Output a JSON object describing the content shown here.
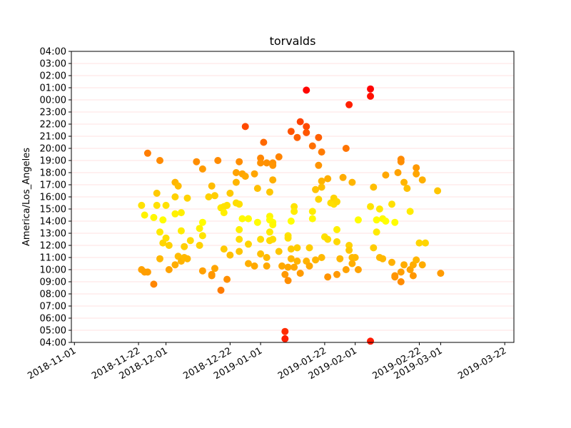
{
  "chart_data": {
    "type": "scatter",
    "title": "torvalds",
    "xlabel": "",
    "ylabel": "America/Los_Angeles",
    "x_axis_type": "date",
    "xlim": [
      "2018-10-31",
      "2019-03-25"
    ],
    "ylim": [
      4,
      28
    ],
    "grid": "horizontal",
    "x_ticks": [
      "2018-11-01",
      "2018-11-22",
      "2018-12-01",
      "2018-12-22",
      "2019-01-01",
      "2019-01-22",
      "2019-02-01",
      "2019-02-22",
      "2019-03-01",
      "2019-03-22"
    ],
    "y_ticks": [
      {
        "value": 4,
        "label": "04:00"
      },
      {
        "value": 5,
        "label": "05:00"
      },
      {
        "value": 6,
        "label": "06:00"
      },
      {
        "value": 7,
        "label": "07:00"
      },
      {
        "value": 8,
        "label": "08:00"
      },
      {
        "value": 9,
        "label": "09:00"
      },
      {
        "value": 10,
        "label": "10:00"
      },
      {
        "value": 11,
        "label": "11:00"
      },
      {
        "value": 12,
        "label": "12:00"
      },
      {
        "value": 13,
        "label": "13:00"
      },
      {
        "value": 14,
        "label": "14:00"
      },
      {
        "value": 15,
        "label": "15:00"
      },
      {
        "value": 16,
        "label": "16:00"
      },
      {
        "value": 17,
        "label": "17:00"
      },
      {
        "value": 18,
        "label": "18:00"
      },
      {
        "value": 19,
        "label": "19:00"
      },
      {
        "value": 20,
        "label": "20:00"
      },
      {
        "value": 21,
        "label": "21:00"
      },
      {
        "value": 22,
        "label": "22:00"
      },
      {
        "value": 23,
        "label": "23:00"
      },
      {
        "value": 24,
        "label": "00:00"
      },
      {
        "value": 25,
        "label": "01:00"
      },
      {
        "value": 26,
        "label": "02:00"
      },
      {
        "value": 27,
        "label": "03:00"
      },
      {
        "value": 28,
        "label": "04:00"
      }
    ],
    "color_scale": {
      "low": "#ffff00",
      "high": "#ff0000"
    },
    "points": [
      {
        "x": "2018-11-23",
        "y": 15.3
      },
      {
        "x": "2018-11-23",
        "y": 10.0
      },
      {
        "x": "2018-11-24",
        "y": 14.5
      },
      {
        "x": "2018-11-24",
        "y": 9.8
      },
      {
        "x": "2018-11-25",
        "y": 19.6
      },
      {
        "x": "2018-11-25",
        "y": 9.8
      },
      {
        "x": "2018-11-27",
        "y": 14.3
      },
      {
        "x": "2018-11-27",
        "y": 8.8
      },
      {
        "x": "2018-11-28",
        "y": 16.3
      },
      {
        "x": "2018-11-28",
        "y": 15.3
      },
      {
        "x": "2018-11-29",
        "y": 19.0
      },
      {
        "x": "2018-11-29",
        "y": 13.1
      },
      {
        "x": "2018-11-29",
        "y": 10.9
      },
      {
        "x": "2018-11-30",
        "y": 14.1
      },
      {
        "x": "2018-11-30",
        "y": 12.2
      },
      {
        "x": "2018-12-01",
        "y": 15.3
      },
      {
        "x": "2018-12-01",
        "y": 12.6
      },
      {
        "x": "2018-12-02",
        "y": 12.0
      },
      {
        "x": "2018-12-02",
        "y": 10.0
      },
      {
        "x": "2018-12-04",
        "y": 17.2
      },
      {
        "x": "2018-12-04",
        "y": 16.0
      },
      {
        "x": "2018-12-04",
        "y": 14.6
      },
      {
        "x": "2018-12-04",
        "y": 10.4
      },
      {
        "x": "2018-12-05",
        "y": 16.9
      },
      {
        "x": "2018-12-05",
        "y": 11.1
      },
      {
        "x": "2018-12-06",
        "y": 14.7
      },
      {
        "x": "2018-12-06",
        "y": 13.2
      },
      {
        "x": "2018-12-06",
        "y": 10.7
      },
      {
        "x": "2018-12-07",
        "y": 11.9
      },
      {
        "x": "2018-12-07",
        "y": 11.0
      },
      {
        "x": "2018-12-08",
        "y": 15.9
      },
      {
        "x": "2018-12-08",
        "y": 10.9
      },
      {
        "x": "2018-12-09",
        "y": 12.4
      },
      {
        "x": "2018-12-11",
        "y": 18.9
      },
      {
        "x": "2018-12-12",
        "y": 13.4
      },
      {
        "x": "2018-12-12",
        "y": 12.0
      },
      {
        "x": "2018-12-13",
        "y": 18.3
      },
      {
        "x": "2018-12-13",
        "y": 13.9
      },
      {
        "x": "2018-12-13",
        "y": 12.8
      },
      {
        "x": "2018-12-13",
        "y": 9.9
      },
      {
        "x": "2018-12-15",
        "y": 16.0
      },
      {
        "x": "2018-12-16",
        "y": 16.9
      },
      {
        "x": "2018-12-16",
        "y": 9.6
      },
      {
        "x": "2018-12-16",
        "y": 9.5
      },
      {
        "x": "2018-12-17",
        "y": 16.1
      },
      {
        "x": "2018-12-17",
        "y": 10.1
      },
      {
        "x": "2018-12-18",
        "y": 19.0
      },
      {
        "x": "2018-12-19",
        "y": 15.1
      },
      {
        "x": "2018-12-19",
        "y": 8.3
      },
      {
        "x": "2018-12-20",
        "y": 15.2
      },
      {
        "x": "2018-12-20",
        "y": 14.7
      },
      {
        "x": "2018-12-20",
        "y": 11.7
      },
      {
        "x": "2018-12-21",
        "y": 15.3
      },
      {
        "x": "2018-12-21",
        "y": 9.2
      },
      {
        "x": "2018-12-22",
        "y": 16.3
      },
      {
        "x": "2018-12-22",
        "y": 11.2
      },
      {
        "x": "2018-12-24",
        "y": 18.0
      },
      {
        "x": "2018-12-24",
        "y": 17.2
      },
      {
        "x": "2018-12-24",
        "y": 15.5
      },
      {
        "x": "2018-12-25",
        "y": 18.9
      },
      {
        "x": "2018-12-25",
        "y": 15.4
      },
      {
        "x": "2018-12-25",
        "y": 13.3
      },
      {
        "x": "2018-12-25",
        "y": 12.5
      },
      {
        "x": "2018-12-25",
        "y": 11.5
      },
      {
        "x": "2018-12-26",
        "y": 17.9
      },
      {
        "x": "2018-12-26",
        "y": 14.2
      },
      {
        "x": "2018-12-27",
        "y": 21.8
      },
      {
        "x": "2018-12-27",
        "y": 17.7
      },
      {
        "x": "2018-12-28",
        "y": 14.2
      },
      {
        "x": "2018-12-28",
        "y": 12.1
      },
      {
        "x": "2018-12-28",
        "y": 10.5
      },
      {
        "x": "2018-12-30",
        "y": 17.9
      },
      {
        "x": "2018-12-30",
        "y": 10.3
      },
      {
        "x": "2018-12-31",
        "y": 16.7
      },
      {
        "x": "2018-12-31",
        "y": 13.9
      },
      {
        "x": "2019-01-01",
        "y": 19.2
      },
      {
        "x": "2019-01-01",
        "y": 18.8
      },
      {
        "x": "2019-01-01",
        "y": 12.5
      },
      {
        "x": "2019-01-01",
        "y": 11.3
      },
      {
        "x": "2019-01-02",
        "y": 20.5
      },
      {
        "x": "2019-01-03",
        "y": 18.8
      },
      {
        "x": "2019-01-03",
        "y": 11.0
      },
      {
        "x": "2019-01-03",
        "y": 10.3
      },
      {
        "x": "2019-01-04",
        "y": 16.4
      },
      {
        "x": "2019-01-04",
        "y": 14.4
      },
      {
        "x": "2019-01-04",
        "y": 14.1
      },
      {
        "x": "2019-01-04",
        "y": 13.1
      },
      {
        "x": "2019-01-04",
        "y": 12.4
      },
      {
        "x": "2019-01-05",
        "y": 18.8
      },
      {
        "x": "2019-01-05",
        "y": 18.6
      },
      {
        "x": "2019-01-05",
        "y": 17.4
      },
      {
        "x": "2019-01-05",
        "y": 13.9
      },
      {
        "x": "2019-01-05",
        "y": 13.7
      },
      {
        "x": "2019-01-05",
        "y": 12.5
      },
      {
        "x": "2019-01-07",
        "y": 19.3
      },
      {
        "x": "2019-01-07",
        "y": 11.5
      },
      {
        "x": "2019-01-08",
        "y": 10.3
      },
      {
        "x": "2019-01-09",
        "y": 4.9
      },
      {
        "x": "2019-01-09",
        "y": 4.3
      },
      {
        "x": "2019-01-09",
        "y": 9.6
      },
      {
        "x": "2019-01-10",
        "y": 12.8
      },
      {
        "x": "2019-01-10",
        "y": 12.6
      },
      {
        "x": "2019-01-10",
        "y": 10.2
      },
      {
        "x": "2019-01-10",
        "y": 9.1
      },
      {
        "x": "2019-01-11",
        "y": 21.4
      },
      {
        "x": "2019-01-11",
        "y": 14.0
      },
      {
        "x": "2019-01-11",
        "y": 11.7
      },
      {
        "x": "2019-01-11",
        "y": 10.9
      },
      {
        "x": "2019-01-12",
        "y": 15.2
      },
      {
        "x": "2019-01-12",
        "y": 14.8
      },
      {
        "x": "2019-01-12",
        "y": 10.2
      },
      {
        "x": "2019-01-13",
        "y": 20.9
      },
      {
        "x": "2019-01-13",
        "y": 11.8
      },
      {
        "x": "2019-01-13",
        "y": 10.7
      },
      {
        "x": "2019-01-14",
        "y": 22.2
      },
      {
        "x": "2019-01-14",
        "y": 9.7
      },
      {
        "x": "2019-01-16",
        "y": 24.8
      },
      {
        "x": "2019-01-16",
        "y": 21.8
      },
      {
        "x": "2019-01-16",
        "y": 21.3
      },
      {
        "x": "2019-01-16",
        "y": 10.7
      },
      {
        "x": "2019-01-17",
        "y": 11.8
      },
      {
        "x": "2019-01-17",
        "y": 10.3
      },
      {
        "x": "2019-01-18",
        "y": 20.2
      },
      {
        "x": "2019-01-18",
        "y": 14.8
      },
      {
        "x": "2019-01-18",
        "y": 14.2
      },
      {
        "x": "2019-01-19",
        "y": 16.6
      },
      {
        "x": "2019-01-19",
        "y": 10.8
      },
      {
        "x": "2019-01-20",
        "y": 20.9
      },
      {
        "x": "2019-01-20",
        "y": 18.6
      },
      {
        "x": "2019-01-20",
        "y": 15.8
      },
      {
        "x": "2019-01-21",
        "y": 19.7
      },
      {
        "x": "2019-01-21",
        "y": 17.3
      },
      {
        "x": "2019-01-21",
        "y": 16.8
      },
      {
        "x": "2019-01-21",
        "y": 11.0
      },
      {
        "x": "2019-01-22",
        "y": 12.7
      },
      {
        "x": "2019-01-23",
        "y": 17.5
      },
      {
        "x": "2019-01-23",
        "y": 12.5
      },
      {
        "x": "2019-01-23",
        "y": 9.4
      },
      {
        "x": "2019-01-24",
        "y": 15.5
      },
      {
        "x": "2019-01-25",
        "y": 15.9
      },
      {
        "x": "2019-01-25",
        "y": 15.4
      },
      {
        "x": "2019-01-26",
        "y": 15.6
      },
      {
        "x": "2019-01-26",
        "y": 13.3
      },
      {
        "x": "2019-01-26",
        "y": 12.3
      },
      {
        "x": "2019-01-26",
        "y": 9.6
      },
      {
        "x": "2019-01-27",
        "y": 10.9
      },
      {
        "x": "2019-01-28",
        "y": 17.6
      },
      {
        "x": "2019-01-29",
        "y": 20.0
      },
      {
        "x": "2019-01-29",
        "y": 10.0
      },
      {
        "x": "2019-01-30",
        "y": 23.6
      },
      {
        "x": "2019-01-30",
        "y": 12.0
      },
      {
        "x": "2019-01-30",
        "y": 11.6
      },
      {
        "x": "2019-01-31",
        "y": 17.2
      },
      {
        "x": "2019-01-31",
        "y": 11.0
      },
      {
        "x": "2019-01-31",
        "y": 10.5
      },
      {
        "x": "2019-02-01",
        "y": 11.0
      },
      {
        "x": "2019-02-02",
        "y": 14.1
      },
      {
        "x": "2019-02-02",
        "y": 10.0
      },
      {
        "x": "2019-02-06",
        "y": 24.9
      },
      {
        "x": "2019-02-06",
        "y": 24.3
      },
      {
        "x": "2019-02-06",
        "y": 15.2
      },
      {
        "x": "2019-02-06",
        "y": 4.1
      },
      {
        "x": "2019-02-07",
        "y": 16.8
      },
      {
        "x": "2019-02-07",
        "y": 11.8
      },
      {
        "x": "2019-02-08",
        "y": 14.1
      },
      {
        "x": "2019-02-08",
        "y": 13.1
      },
      {
        "x": "2019-02-09",
        "y": 15.0
      },
      {
        "x": "2019-02-09",
        "y": 11.0
      },
      {
        "x": "2019-02-10",
        "y": 14.2
      },
      {
        "x": "2019-02-10",
        "y": 10.9
      },
      {
        "x": "2019-02-11",
        "y": 17.8
      },
      {
        "x": "2019-02-11",
        "y": 14.0
      },
      {
        "x": "2019-02-13",
        "y": 15.4
      },
      {
        "x": "2019-02-13",
        "y": 10.6
      },
      {
        "x": "2019-02-14",
        "y": 13.9
      },
      {
        "x": "2019-02-14",
        "y": 9.5
      },
      {
        "x": "2019-02-14",
        "y": 9.4
      },
      {
        "x": "2019-02-15",
        "y": 18.0
      },
      {
        "x": "2019-02-16",
        "y": 19.1
      },
      {
        "x": "2019-02-16",
        "y": 18.9
      },
      {
        "x": "2019-02-16",
        "y": 9.8
      },
      {
        "x": "2019-02-16",
        "y": 9.0
      },
      {
        "x": "2019-02-17",
        "y": 17.2
      },
      {
        "x": "2019-02-17",
        "y": 10.4
      },
      {
        "x": "2019-02-18",
        "y": 16.7
      },
      {
        "x": "2019-02-19",
        "y": 14.8
      },
      {
        "x": "2019-02-19",
        "y": 10.0
      },
      {
        "x": "2019-02-20",
        "y": 10.4
      },
      {
        "x": "2019-02-20",
        "y": 9.5
      },
      {
        "x": "2019-02-21",
        "y": 18.4
      },
      {
        "x": "2019-02-21",
        "y": 17.9
      },
      {
        "x": "2019-02-21",
        "y": 10.8
      },
      {
        "x": "2019-02-22",
        "y": 12.2
      },
      {
        "x": "2019-02-23",
        "y": 17.4
      },
      {
        "x": "2019-02-23",
        "y": 10.4
      },
      {
        "x": "2019-02-24",
        "y": 12.2
      },
      {
        "x": "2019-02-28",
        "y": 16.5
      },
      {
        "x": "2019-03-01",
        "y": 9.7
      }
    ]
  }
}
